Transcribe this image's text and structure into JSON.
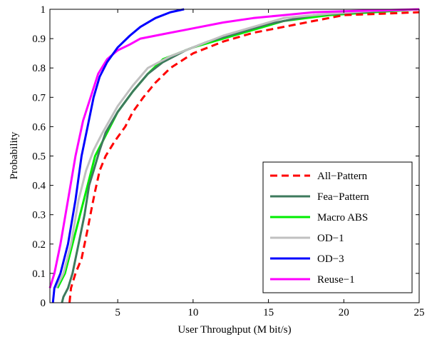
{
  "chart_data": {
    "type": "line",
    "title": "",
    "xlabel": "User Throughput (M bit/s)",
    "ylabel": "Probability",
    "xlim": [
      0.5,
      25
    ],
    "ylim": [
      0,
      1
    ],
    "xticks": [
      5,
      10,
      15,
      20,
      25
    ],
    "yticks": [
      0,
      0.1,
      0.2,
      0.3,
      0.4,
      0.5,
      0.6,
      0.7,
      0.8,
      0.9,
      1
    ],
    "grid": false,
    "legend_position": "bottom-right",
    "series": [
      {
        "name": "All−Pattern",
        "color": "#ff0000",
        "dash": "dashed",
        "points": [
          [
            1.8,
            0
          ],
          [
            1.9,
            0.05
          ],
          [
            2.2,
            0.1
          ],
          [
            2.6,
            0.15
          ],
          [
            3.0,
            0.25
          ],
          [
            3.3,
            0.33
          ],
          [
            3.5,
            0.38
          ],
          [
            3.8,
            0.45
          ],
          [
            4.2,
            0.5
          ],
          [
            4.8,
            0.55
          ],
          [
            5.5,
            0.6
          ],
          [
            6,
            0.65
          ],
          [
            6.7,
            0.7
          ],
          [
            7.5,
            0.75
          ],
          [
            8.5,
            0.8
          ],
          [
            10,
            0.85
          ],
          [
            12,
            0.89
          ],
          [
            14,
            0.92
          ],
          [
            16,
            0.94
          ],
          [
            18,
            0.96
          ],
          [
            20,
            0.98
          ],
          [
            22.5,
            0.985
          ],
          [
            25,
            0.99
          ]
        ]
      },
      {
        "name": "Fea−Pattern",
        "color": "#3d7a5d",
        "dash": "solid",
        "points": [
          [
            1.3,
            0
          ],
          [
            1.4,
            0.02
          ],
          [
            1.7,
            0.05
          ],
          [
            2.0,
            0.1
          ],
          [
            2.4,
            0.2
          ],
          [
            2.8,
            0.3
          ],
          [
            3.1,
            0.4
          ],
          [
            3.4,
            0.45
          ],
          [
            3.8,
            0.52
          ],
          [
            4.2,
            0.58
          ],
          [
            5,
            0.65
          ],
          [
            6,
            0.72
          ],
          [
            7,
            0.78
          ],
          [
            8,
            0.82
          ],
          [
            9.5,
            0.86
          ],
          [
            11,
            0.89
          ],
          [
            13,
            0.92
          ],
          [
            15,
            0.95
          ],
          [
            18,
            0.98
          ],
          [
            21,
            0.99
          ],
          [
            25,
            1.0
          ]
        ]
      },
      {
        "name": "Macro ABS",
        "color": "#00ee00",
        "dash": "solid",
        "points": [
          [
            1.0,
            0.05
          ],
          [
            1.5,
            0.1
          ],
          [
            2.0,
            0.2
          ],
          [
            2.5,
            0.3
          ],
          [
            3.0,
            0.4
          ],
          [
            3.5,
            0.5
          ],
          [
            4.0,
            0.55
          ],
          [
            5.0,
            0.65
          ],
          [
            6.0,
            0.72
          ],
          [
            7.0,
            0.78
          ],
          [
            8.0,
            0.83
          ],
          [
            10.0,
            0.87
          ],
          [
            12.0,
            0.9
          ],
          [
            14.0,
            0.93
          ],
          [
            16.0,
            0.96
          ],
          [
            19.0,
            0.98
          ],
          [
            22.0,
            0.99
          ],
          [
            25.0,
            1.0
          ]
        ]
      },
      {
        "name": "OD−1",
        "color": "#c0c0c0",
        "dash": "solid",
        "points": [
          [
            0.9,
            0.05
          ],
          [
            1.4,
            0.1
          ],
          [
            1.9,
            0.2
          ],
          [
            2.4,
            0.35
          ],
          [
            2.9,
            0.45
          ],
          [
            3.4,
            0.52
          ],
          [
            4.0,
            0.58
          ],
          [
            5.0,
            0.67
          ],
          [
            6.0,
            0.74
          ],
          [
            7.0,
            0.8
          ],
          [
            8.5,
            0.84
          ],
          [
            10.0,
            0.87
          ],
          [
            12.0,
            0.91
          ],
          [
            14.0,
            0.94
          ],
          [
            16.0,
            0.97
          ],
          [
            19.0,
            0.985
          ],
          [
            22.0,
            0.995
          ],
          [
            25.0,
            1.0
          ]
        ]
      },
      {
        "name": "OD−3",
        "color": "#0000ff",
        "dash": "solid",
        "points": [
          [
            0.7,
            0
          ],
          [
            0.8,
            0.05
          ],
          [
            1.2,
            0.1
          ],
          [
            1.7,
            0.2
          ],
          [
            2.2,
            0.35
          ],
          [
            2.6,
            0.5
          ],
          [
            3.0,
            0.6
          ],
          [
            3.4,
            0.7
          ],
          [
            3.8,
            0.77
          ],
          [
            4.3,
            0.82
          ],
          [
            5.0,
            0.87
          ],
          [
            5.8,
            0.91
          ],
          [
            6.5,
            0.94
          ],
          [
            7.5,
            0.97
          ],
          [
            8.5,
            0.99
          ],
          [
            9.4,
            1.0
          ]
        ]
      },
      {
        "name": "Reuse−1",
        "color": "#ff00ff",
        "dash": "solid",
        "points": [
          [
            0.5,
            0.05
          ],
          [
            0.8,
            0.1
          ],
          [
            1.2,
            0.2
          ],
          [
            1.7,
            0.35
          ],
          [
            2.2,
            0.5
          ],
          [
            2.7,
            0.62
          ],
          [
            3.2,
            0.7
          ],
          [
            3.7,
            0.78
          ],
          [
            4.3,
            0.83
          ],
          [
            5.0,
            0.86
          ],
          [
            5.8,
            0.88
          ],
          [
            6.5,
            0.9
          ],
          [
            8,
            0.915
          ],
          [
            10,
            0.935
          ],
          [
            12,
            0.955
          ],
          [
            14,
            0.97
          ],
          [
            16,
            0.98
          ],
          [
            18,
            0.99
          ],
          [
            21,
            0.995
          ],
          [
            25,
            1.0
          ]
        ]
      }
    ]
  }
}
